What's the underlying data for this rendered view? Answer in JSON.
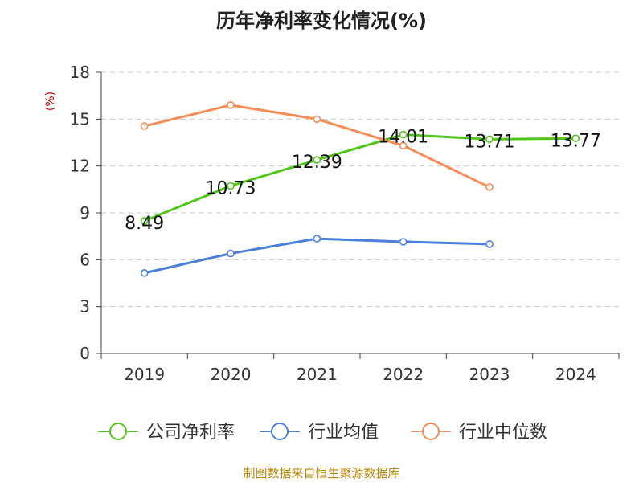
{
  "page": {
    "title": "历年净利率变化情况(%)",
    "source": "制图数据来自恒生聚源数据库"
  },
  "chart_data": {
    "type": "line",
    "title": "历年净利率变化情况(%)",
    "xlabel": "",
    "ylabel": "(%)",
    "categories": [
      "2019",
      "2020",
      "2021",
      "2022",
      "2023",
      "2024"
    ],
    "ylim": [
      0,
      18
    ],
    "yticks": [
      0,
      3,
      6,
      9,
      12,
      15,
      18
    ],
    "grid": true,
    "legend_position": "bottom",
    "series": [
      {
        "name": "公司净利率",
        "color": "#52c41a",
        "values": [
          8.49,
          10.73,
          12.39,
          14.01,
          13.71,
          13.77
        ],
        "labels": [
          "8.49",
          "10.73",
          "12.39",
          "14.01",
          "13.71",
          "13.77"
        ]
      },
      {
        "name": "行业均值",
        "color": "#4a7fdb",
        "values": [
          5.15,
          6.4,
          7.35,
          7.15,
          7.0,
          null
        ]
      },
      {
        "name": "行业中位数",
        "color": "#f58d5a",
        "values": [
          14.55,
          15.9,
          15.0,
          13.3,
          10.65,
          null
        ]
      }
    ]
  }
}
